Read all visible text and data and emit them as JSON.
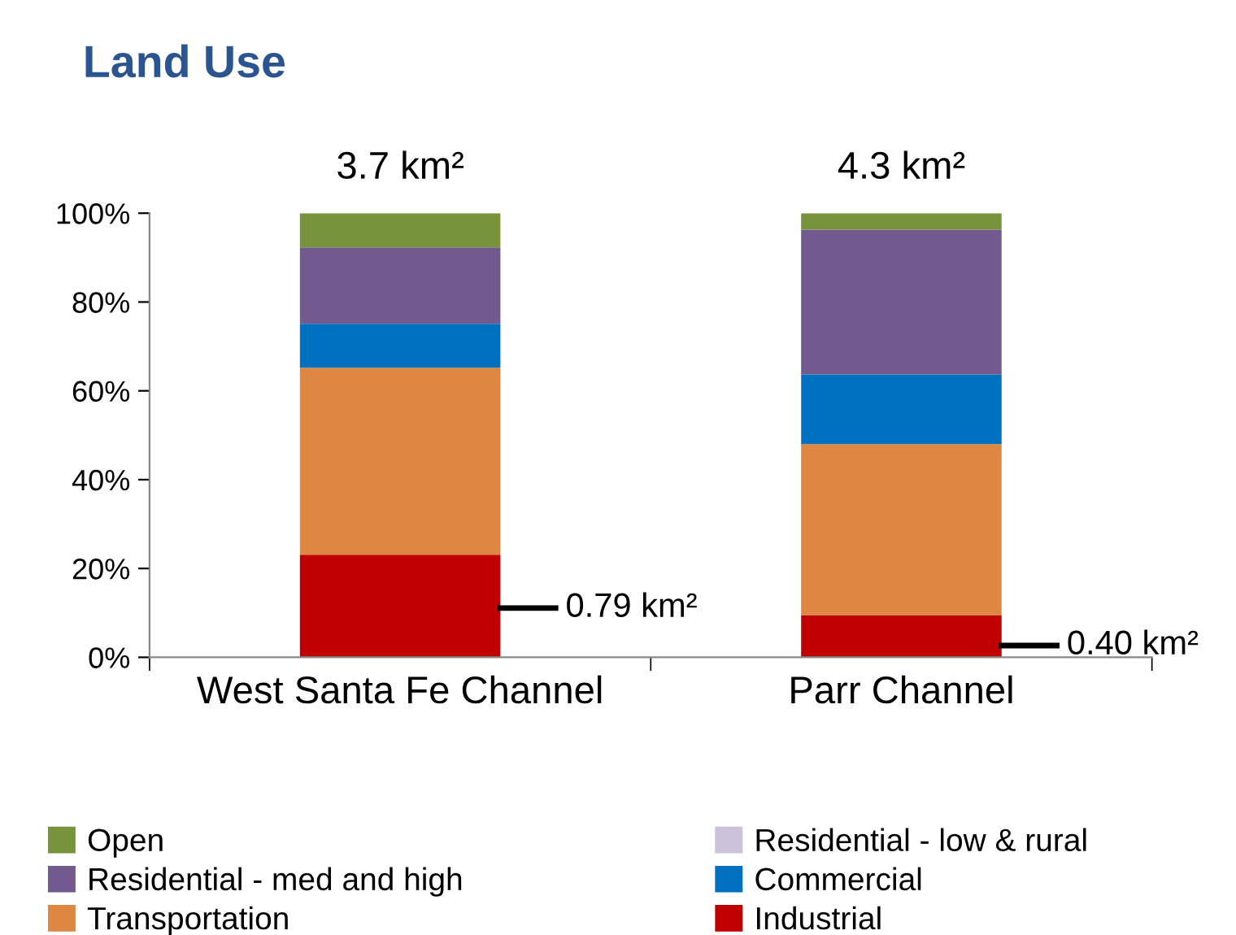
{
  "chart_data": {
    "type": "bar",
    "title": "Land Use",
    "stacked": true,
    "categories": [
      "West Santa Fe Channel",
      "Parr Channel"
    ],
    "series": [
      {
        "name": "Industrial",
        "color": "#c00000",
        "values": [
          23.1,
          9.5
        ]
      },
      {
        "name": "Transportation",
        "color": "#dd8743",
        "values": [
          42.1,
          38.5
        ]
      },
      {
        "name": "Commercial",
        "color": "#0070c0",
        "values": [
          9.9,
          15.7
        ]
      },
      {
        "name": "Residential - med and high",
        "color": "#725a8e",
        "values": [
          17.2,
          32.6
        ]
      },
      {
        "name": "Residential - low & rural",
        "color": "#ccc1da",
        "values": [
          0,
          0
        ]
      },
      {
        "name": "Open",
        "color": "#77933c",
        "values": [
          7.7,
          3.7
        ]
      }
    ],
    "annotations": [
      "3.7 km²",
      "4.3 km²",
      "0.79 km²",
      "0.40 km²"
    ],
    "ylim": [
      0,
      100
    ],
    "yticks": [
      {
        "value": 0,
        "label": "0%"
      },
      {
        "value": 20,
        "label": "20%"
      },
      {
        "value": 40,
        "label": "40%"
      },
      {
        "value": 60,
        "label": "60%"
      },
      {
        "value": 80,
        "label": "80%"
      },
      {
        "value": 100,
        "label": "100%"
      }
    ],
    "grid": false,
    "legend": "bottom"
  }
}
